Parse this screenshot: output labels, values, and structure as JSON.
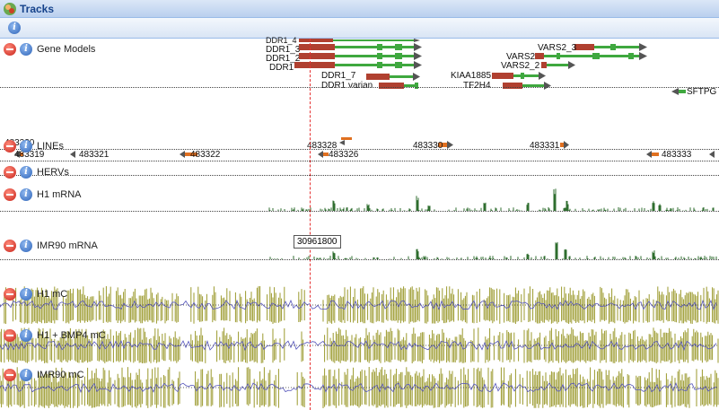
{
  "window": {
    "title": "Tracks"
  },
  "tracks": [
    {
      "id": "gene-models",
      "label": "Gene Models"
    },
    {
      "id": "lines",
      "label": "LINEs"
    },
    {
      "id": "hervs",
      "label": "HERVs"
    },
    {
      "id": "h1-mrna",
      "label": "H1 mRNA"
    },
    {
      "id": "imr90-mrna",
      "label": "IMR90 mRNA"
    },
    {
      "id": "h1-mc",
      "label": "H1 mC"
    },
    {
      "id": "h1-bmp4-mc",
      "label": "H1 + BMP4 mC"
    },
    {
      "id": "imr90-mc",
      "label": "IMR90 mC"
    }
  ],
  "genes": {
    "ddr1_top": "DDR1_4",
    "ddr1_3": "DDR1_3",
    "ddr1_2": "DDR1_2",
    "ddr1": "DDR1",
    "ddr1_7": "DDR1_7",
    "ddr1_varian": "DDR1 varian",
    "vars2_3": "VARS2_3",
    "vars2": "VARS2",
    "vars2_2": "VARS2_2",
    "kiaa1885": "KIAA1885",
    "tf2h4": "TF2H4",
    "sftpg": "SFTPG"
  },
  "line_features": {
    "f483319": "483319",
    "f483321": "483321",
    "f483322": "483322",
    "f483328": "483328",
    "f483326": "483326",
    "f483330": "483330",
    "f483331": "483331",
    "f483333": "483333",
    "f483320": "483320"
  },
  "cursor": {
    "position_label": "30961800"
  },
  "colors": {
    "methylation": "#9b9a2e",
    "methylation_alt": "#5555bb",
    "mrna": "#2f6e2f",
    "gene_exon": "#b04030",
    "gene_intron": "#3fa83f",
    "cursor": "#e53030"
  }
}
